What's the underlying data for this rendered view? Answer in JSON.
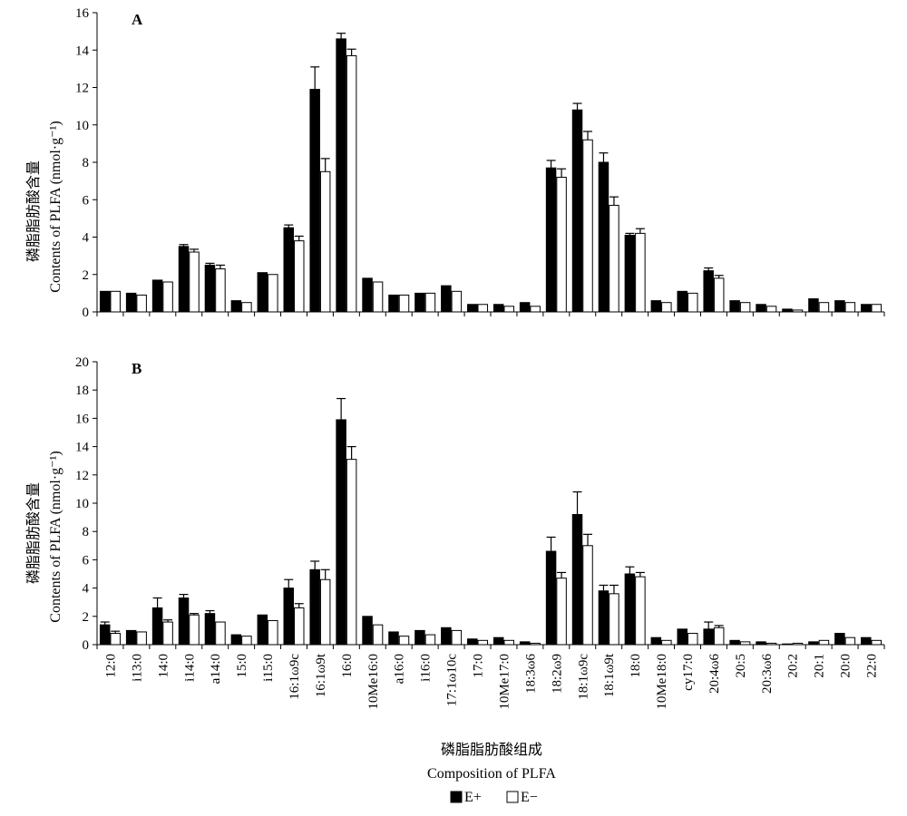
{
  "chart_data": {
    "type": "bar",
    "categories": [
      "12:0",
      "i13:0",
      "14:0",
      "i14:0",
      "a14:0",
      "15:0",
      "i15:0",
      "16:1ω9c",
      "16:1ω9t",
      "16:0",
      "10Me16:0",
      "a16:0",
      "i16:0",
      "17:1ω10c",
      "17:0",
      "10Me17:0",
      "18:3ω6",
      "18:2ω9",
      "18:1ω9c",
      "18:1ω9t",
      "18:0",
      "10Me18:0",
      "cy17:0",
      "20:4ω6",
      "20:5",
      "20:3ω6",
      "20:2",
      "20:1",
      "20:0",
      "22:0"
    ],
    "legend": {
      "items": [
        "E+",
        "E−"
      ],
      "position": "bottom-center"
    },
    "xlabel_cn": "磷脂脂肪酸组成",
    "xlabel": "Composition of PLFA",
    "panels": [
      {
        "label": "A",
        "ylabel_cn": "磷脂脂肪酸含量",
        "ylabel": "Contents of PLFA (nmol·g⁻¹)",
        "ylim": [
          0,
          16
        ],
        "yticks": [
          0,
          2,
          4,
          6,
          8,
          10,
          12,
          14,
          16
        ],
        "series": [
          {
            "name": "E+",
            "values": [
              1.1,
              1.0,
              1.7,
              3.5,
              2.5,
              0.6,
              2.1,
              4.5,
              11.9,
              14.6,
              1.8,
              0.9,
              1.0,
              1.4,
              0.4,
              0.4,
              0.5,
              7.7,
              10.8,
              8.0,
              4.1,
              0.6,
              1.1,
              2.2,
              0.6,
              0.4,
              0.15,
              0.7,
              0.6,
              0.4
            ],
            "errors": [
              0,
              0,
              0,
              0.1,
              0.1,
              0,
              0,
              0.15,
              1.2,
              0.3,
              0,
              0,
              0,
              0,
              0,
              0,
              0,
              0.4,
              0.35,
              0.5,
              0.1,
              0,
              0,
              0.15,
              0,
              0,
              0,
              0,
              0,
              0
            ]
          },
          {
            "name": "E−",
            "values": [
              1.1,
              0.9,
              1.6,
              3.2,
              2.3,
              0.5,
              2.0,
              3.8,
              7.5,
              13.7,
              1.6,
              0.9,
              1.0,
              1.1,
              0.4,
              0.3,
              0.3,
              7.2,
              9.2,
              5.7,
              4.2,
              0.5,
              1.0,
              1.8,
              0.5,
              0.3,
              0.1,
              0.5,
              0.5,
              0.4
            ],
            "errors": [
              0,
              0,
              0,
              0.15,
              0.2,
              0,
              0,
              0.25,
              0.7,
              0.35,
              0,
              0,
              0,
              0,
              0,
              0,
              0,
              0.45,
              0.45,
              0.45,
              0.25,
              0,
              0,
              0.15,
              0,
              0,
              0,
              0,
              0,
              0
            ]
          }
        ]
      },
      {
        "label": "B",
        "ylabel_cn": "磷脂脂肪酸含量",
        "ylabel": "Contents of PLFA (nmol·g⁻¹)",
        "ylim": [
          0,
          20
        ],
        "yticks": [
          0,
          2,
          4,
          6,
          8,
          10,
          12,
          14,
          16,
          18,
          20
        ],
        "series": [
          {
            "name": "E+",
            "values": [
              1.4,
              1.0,
              2.6,
              3.3,
              2.2,
              0.7,
              2.1,
              4.0,
              5.3,
              15.9,
              2.0,
              0.9,
              1.0,
              1.2,
              0.4,
              0.5,
              0.2,
              6.6,
              9.2,
              3.8,
              5.0,
              0.5,
              1.1,
              1.1,
              0.3,
              0.2,
              0.05,
              0.2,
              0.8,
              0.5
            ],
            "errors": [
              0.2,
              0,
              0.7,
              0.25,
              0.2,
              0,
              0,
              0.6,
              0.6,
              1.5,
              0,
              0,
              0,
              0,
              0,
              0,
              0,
              1.0,
              1.6,
              0.4,
              0.5,
              0,
              0,
              0.5,
              0,
              0,
              0,
              0,
              0,
              0
            ]
          },
          {
            "name": "E−",
            "values": [
              0.8,
              0.9,
              1.6,
              2.1,
              1.6,
              0.6,
              1.7,
              2.6,
              4.6,
              13.1,
              1.4,
              0.6,
              0.7,
              1.0,
              0.3,
              0.3,
              0.1,
              4.7,
              7.0,
              3.6,
              4.8,
              0.3,
              0.8,
              1.2,
              0.2,
              0.1,
              0.1,
              0.3,
              0.5,
              0.3
            ],
            "errors": [
              0.15,
              0,
              0.15,
              0.1,
              0,
              0,
              0,
              0.3,
              0.7,
              0.9,
              0,
              0,
              0,
              0,
              0,
              0,
              0,
              0.4,
              0.8,
              0.6,
              0.3,
              0,
              0,
              0.15,
              0,
              0,
              0,
              0,
              0,
              0
            ]
          }
        ]
      }
    ]
  }
}
